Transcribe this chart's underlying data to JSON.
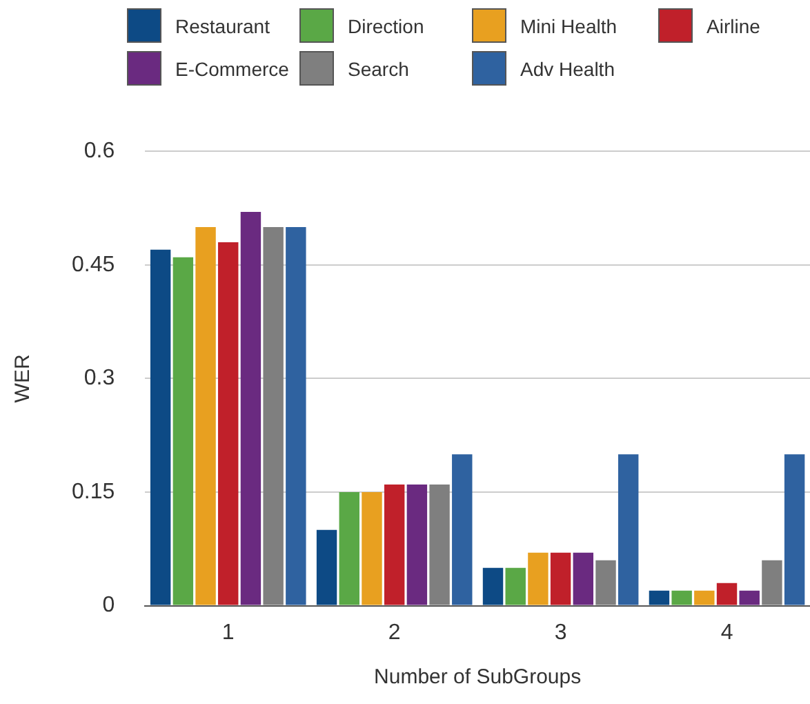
{
  "chart_data": {
    "type": "bar",
    "xlabel": "Number of SubGroups",
    "ylabel": "WER",
    "categories": [
      "1",
      "2",
      "3",
      "4"
    ],
    "series": [
      {
        "name": "Restaurant",
        "color": "#0d4a85",
        "values": [
          0.47,
          0.1,
          0.05,
          0.02
        ]
      },
      {
        "name": "Direction",
        "color": "#5aa846",
        "values": [
          0.46,
          0.15,
          0.05,
          0.02
        ]
      },
      {
        "name": "Mini Health",
        "color": "#e8a020",
        "values": [
          0.5,
          0.15,
          0.07,
          0.02
        ]
      },
      {
        "name": "Airline",
        "color": "#c0202a",
        "values": [
          0.48,
          0.16,
          0.07,
          0.03
        ]
      },
      {
        "name": "E-Commerce",
        "color": "#6a2a80",
        "values": [
          0.52,
          0.16,
          0.07,
          0.02
        ]
      },
      {
        "name": "Search",
        "color": "#7f7f7f",
        "values": [
          0.5,
          0.16,
          0.06,
          0.06
        ]
      },
      {
        "name": "Adv Health",
        "color": "#2f62a0",
        "values": [
          0.5,
          0.2,
          0.2,
          0.2
        ]
      }
    ],
    "ylim": [
      0,
      0.6
    ],
    "yticks": [
      0,
      0.15,
      0.3,
      0.45,
      0.6
    ],
    "grid": "y",
    "legend": "top"
  }
}
